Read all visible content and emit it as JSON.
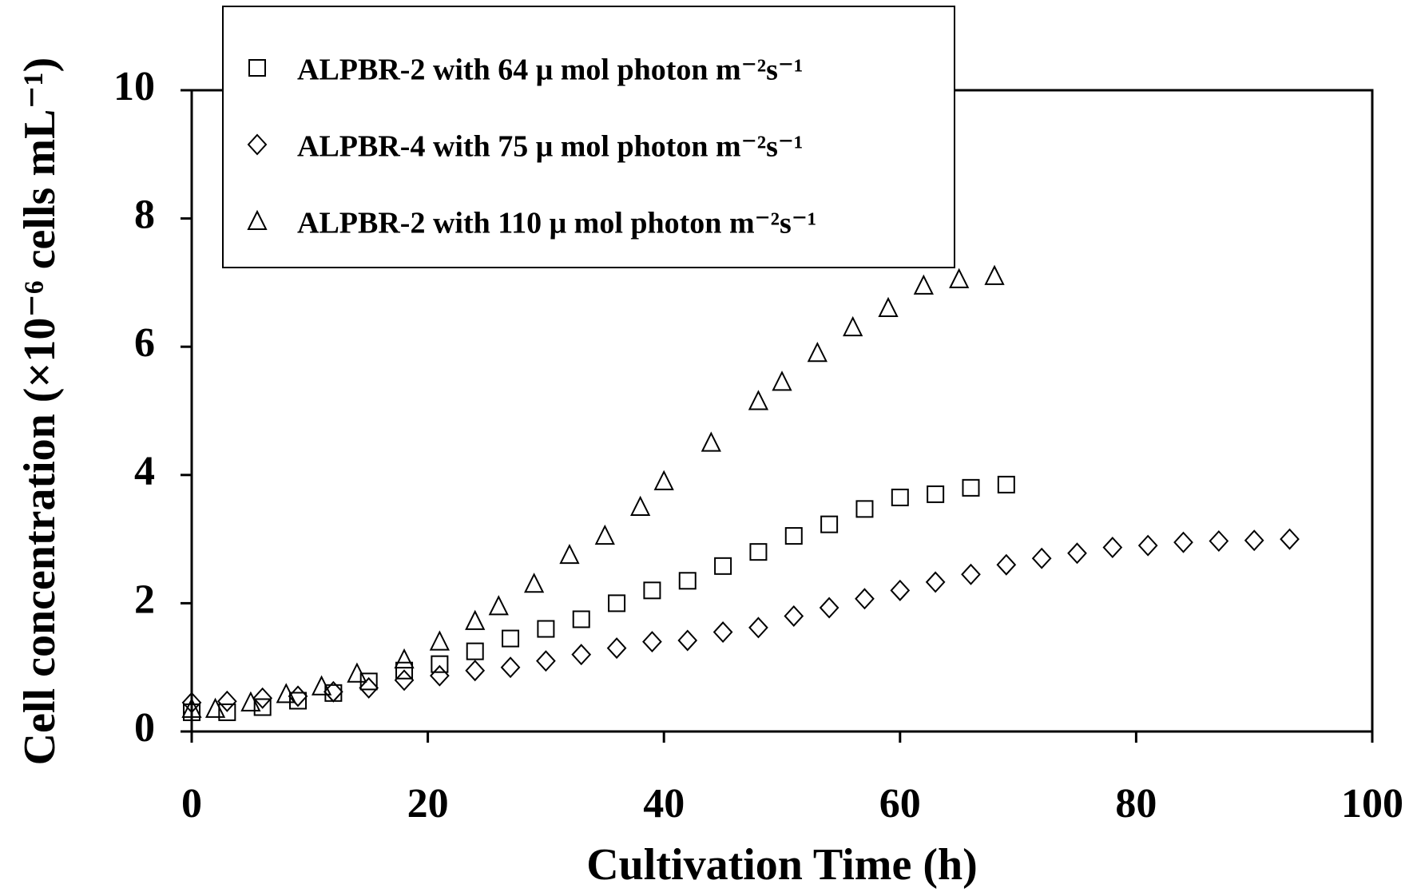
{
  "chart_data": {
    "type": "scatter",
    "xlabel": "Cultivation Time (h)",
    "ylabel": "Cell concentration (×10⁻⁶ cells mL⁻¹)",
    "xlim": [
      0,
      100
    ],
    "xticks": [
      0,
      20,
      40,
      60,
      80,
      100
    ],
    "ylim": [
      0,
      10
    ],
    "yticks": [
      0,
      2,
      4,
      6,
      8,
      10
    ],
    "series": [
      {
        "name": "ALPBR-2 with 64 μ mol photon m⁻²s⁻¹",
        "color": "#000000",
        "marker": "square",
        "x": [
          0,
          3,
          6,
          9,
          12,
          15,
          18,
          21,
          24,
          27,
          30,
          33,
          36,
          39,
          42,
          45,
          48,
          51,
          54,
          57,
          60,
          63,
          66,
          69
        ],
        "values": [
          0.3,
          0.3,
          0.38,
          0.48,
          0.6,
          0.78,
          0.95,
          1.05,
          1.25,
          1.45,
          1.6,
          1.75,
          2.0,
          2.2,
          2.35,
          2.58,
          2.8,
          3.05,
          3.23,
          3.47,
          3.65,
          3.7,
          3.8,
          3.85
        ]
      },
      {
        "name": "ALPBR-4 with 75 μ mol photon m⁻²s⁻¹",
        "color": "#000000",
        "marker": "diamond",
        "x": [
          0,
          3,
          6,
          9,
          12,
          15,
          18,
          21,
          24,
          27,
          30,
          33,
          36,
          39,
          42,
          45,
          48,
          51,
          54,
          57,
          60,
          63,
          66,
          69,
          72,
          75,
          78,
          81,
          84,
          87,
          90,
          93
        ],
        "values": [
          0.45,
          0.47,
          0.52,
          0.55,
          0.62,
          0.68,
          0.8,
          0.87,
          0.95,
          1.0,
          1.1,
          1.2,
          1.3,
          1.4,
          1.42,
          1.55,
          1.62,
          1.8,
          1.93,
          2.07,
          2.2,
          2.33,
          2.45,
          2.6,
          2.7,
          2.78,
          2.87,
          2.9,
          2.95,
          2.97,
          2.98,
          3.0
        ]
      },
      {
        "name": "ALPBR-2 with 110 μ mol photon m⁻²s⁻¹",
        "color": "#000000",
        "marker": "triangle",
        "x": [
          0,
          2,
          5,
          8,
          11,
          14,
          18,
          21,
          24,
          26,
          29,
          32,
          35,
          38,
          40,
          44,
          48,
          50,
          53,
          56,
          59,
          62,
          65,
          68
        ],
        "values": [
          0.35,
          0.35,
          0.45,
          0.58,
          0.7,
          0.9,
          1.12,
          1.4,
          1.72,
          1.95,
          2.3,
          2.75,
          3.05,
          3.5,
          3.9,
          4.5,
          5.15,
          5.45,
          5.9,
          6.3,
          6.6,
          6.95,
          7.05,
          7.1
        ]
      }
    ]
  }
}
